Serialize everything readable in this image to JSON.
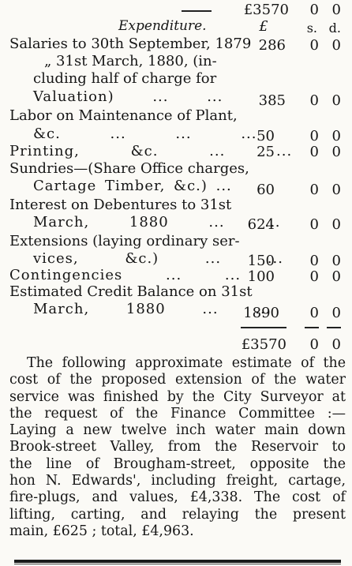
{
  "header": {
    "top_total": "£3570",
    "top_s": "0",
    "top_d": "0",
    "section_title": "Expenditure.",
    "col_pound": "£",
    "col_s": "s.",
    "col_d": "d."
  },
  "lines": [
    {
      "text": "Salaries to 30th September, 1879",
      "amount": "286",
      "s": "0",
      "d": "0"
    },
    {
      "text": "„ 31st March, 1880, (in-"
    },
    {
      "text": "cluding half of charge for"
    },
    {
      "text": "Valuation) ... ...",
      "amount": "385",
      "s": "0",
      "d": "0"
    },
    {
      "text": "Labor on Maintenance of Plant,"
    },
    {
      "text": "&c. ... ... ...",
      "amount": "50",
      "s": "0",
      "d": "0"
    },
    {
      "text": "Printing, &c. ... ...",
      "amount": "25",
      "s": "0",
      "d": "0"
    },
    {
      "text": "Sundries—(Share Office charges,"
    },
    {
      "text": "Cartage Timber, &c.) ...",
      "amount": "60",
      "s": "0",
      "d": "0"
    },
    {
      "text": "Interest on Debentures to 31st"
    },
    {
      "text": "March, 1880 ... ...",
      "amount": "624",
      "s": "0",
      "d": "0"
    },
    {
      "text": "Extensions (laying ordinary ser-"
    },
    {
      "text": "vices, &c.) ... ...",
      "amount": "150",
      "s": "0",
      "d": "0"
    },
    {
      "text": "Contingencies ... ...",
      "amount": "100",
      "s": "0",
      "d": "0"
    },
    {
      "text": "Estimated Credit Balance on 31st"
    },
    {
      "text": "March, 1880 ... ...",
      "amount": "1890",
      "s": "0",
      "d": "0"
    }
  ],
  "total": {
    "amount": "£3570",
    "s": "0",
    "d": "0"
  },
  "paragraph": [
    "The following approximate estimate of the",
    "cost of the proposed extension of the water",
    "service was finished by the City Surveyor at",
    "the request of the Finance Committee :—",
    "Laying a new twelve inch water main down",
    "Brook-street Valley, from the Reservoir to",
    "the line of Brougham-street, opposite the",
    "hon N. Edwards', including freight, cartage,",
    "fire-plugs, and values, £4,338. The cost of",
    "lifting, carting, and relaying the present",
    "main, £625 ; total, £4,963."
  ]
}
